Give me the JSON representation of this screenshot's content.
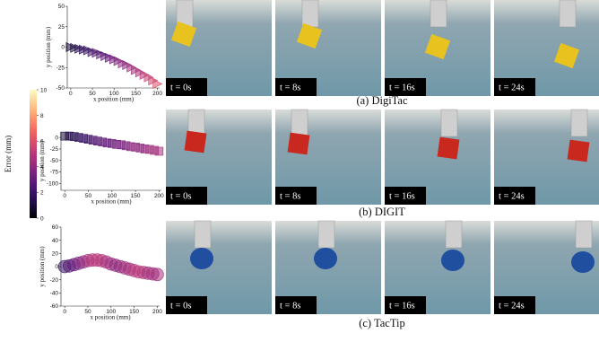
{
  "chart_data": [
    {
      "type": "scatter",
      "marker": "triangle",
      "x_label": "x position (mm)",
      "y_label": "y position (mm)",
      "x": [
        0,
        10,
        20,
        30,
        40,
        50,
        60,
        70,
        80,
        90,
        100,
        110,
        120,
        130,
        140,
        150,
        160,
        170,
        180,
        190,
        200
      ],
      "values": [
        0,
        -1,
        -2,
        -3,
        -4,
        -6,
        -7,
        -9,
        -11,
        -13,
        -15,
        -17,
        -20,
        -22,
        -25,
        -28,
        -31,
        -34,
        -37,
        -41,
        -45
      ],
      "error": [
        1,
        1,
        1.5,
        1.5,
        2,
        2,
        2.5,
        2.5,
        3,
        3,
        3.5,
        3.5,
        4,
        4,
        4.5,
        4.5,
        5,
        5,
        5.5,
        5.5,
        6
      ],
      "xlim": [
        -8,
        205
      ],
      "ylim": [
        -50,
        50
      ],
      "xticks": [
        0,
        50,
        100,
        150,
        200
      ],
      "yticks": [
        -50,
        -25,
        0,
        25,
        50
      ]
    },
    {
      "type": "scatter",
      "marker": "square",
      "x_label": "x position (mm)",
      "y_label": "y position (mm)",
      "x": [
        0,
        10,
        20,
        30,
        40,
        50,
        60,
        70,
        80,
        90,
        100,
        110,
        120,
        130,
        140,
        150,
        160,
        170,
        180,
        190,
        200
      ],
      "values": [
        3,
        3,
        2,
        0,
        -2,
        -4,
        -6,
        -8,
        -10,
        -12,
        -13,
        -15,
        -16,
        -18,
        -20,
        -21,
        -23,
        -25,
        -26,
        -28,
        -30
      ],
      "error": [
        1,
        1,
        1.5,
        1.5,
        2,
        2,
        2.5,
        2.5,
        3,
        3,
        3,
        3.5,
        3.5,
        3.5,
        4,
        4,
        4,
        4,
        4.5,
        4.5,
        4.5
      ],
      "xlim": [
        -8,
        205
      ],
      "ylim": [
        -115,
        12
      ],
      "xticks": [
        0,
        50,
        100,
        150,
        200
      ],
      "yticks": [
        -100,
        -75,
        -50,
        -25,
        0
      ]
    },
    {
      "type": "scatter",
      "marker": "circle",
      "x_label": "x position (mm)",
      "y_label": "y position (mm)",
      "x": [
        0,
        10,
        20,
        30,
        40,
        50,
        60,
        70,
        80,
        90,
        100,
        110,
        120,
        130,
        140,
        150,
        160,
        170,
        180,
        190,
        200
      ],
      "values": [
        0,
        1,
        3,
        5,
        7,
        9,
        10,
        10,
        9,
        7,
        4,
        2,
        0,
        -2,
        -4,
        -6,
        -8,
        -9,
        -10,
        -11,
        -12
      ],
      "error": [
        2,
        2.5,
        3,
        3.5,
        4,
        4.5,
        5,
        5,
        5,
        4.5,
        4.5,
        4,
        4,
        4.5,
        4.5,
        5,
        5,
        5,
        4.5,
        4.5,
        4.5
      ],
      "xlim": [
        -8,
        205
      ],
      "ylim": [
        -60,
        60
      ],
      "xticks": [
        0,
        50,
        100,
        150,
        200
      ],
      "yticks": [
        -60,
        -40,
        -20,
        0,
        20,
        40,
        60
      ]
    }
  ],
  "colorbar": {
    "label": "Error (mm)",
    "colormap": "magma",
    "lim": [
      0,
      10
    ],
    "ticks": [
      0,
      2,
      4,
      6,
      8,
      10
    ]
  },
  "panels": [
    {
      "caption": "(a) DigiTac",
      "times": [
        "t = 0s",
        "t = 8s",
        "t = 16s",
        "t = 24s"
      ]
    },
    {
      "caption": "(b) DIGIT",
      "times": [
        "t = 0s",
        "t = 8s",
        "t = 16s",
        "t = 24s"
      ]
    },
    {
      "caption": "(c) TacTip",
      "times": [
        "t = 0s",
        "t = 8s",
        "t = 16s",
        "t = 24s"
      ]
    }
  ]
}
